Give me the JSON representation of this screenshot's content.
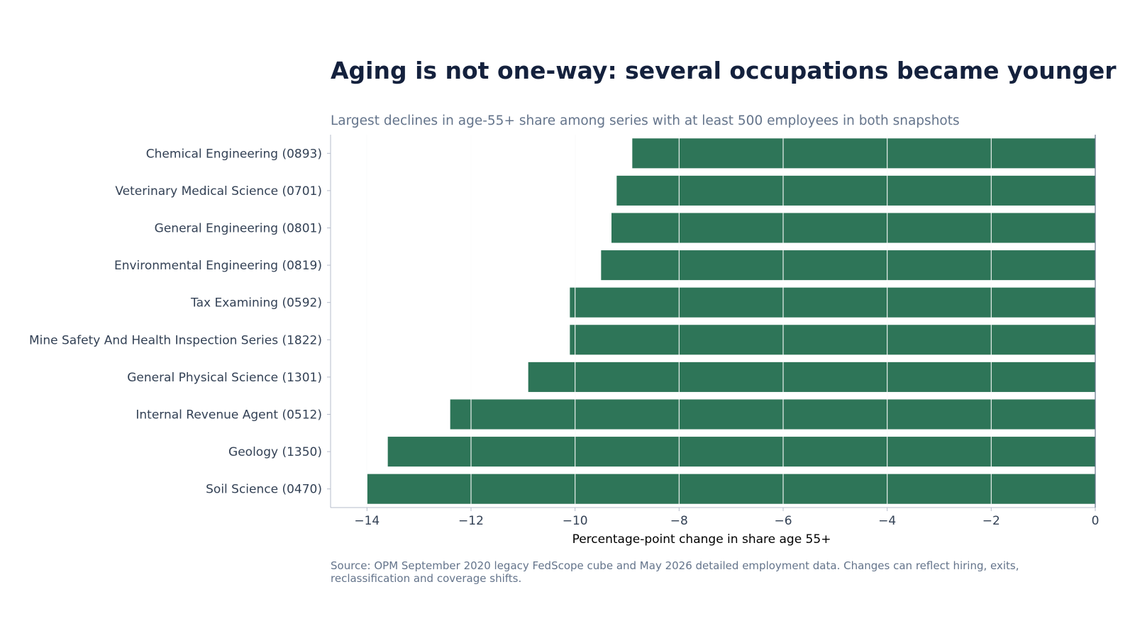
{
  "colors": {
    "bar": "#2e7558",
    "title": "#14213d",
    "muted": "#64748b",
    "grid": "#e5e7eb",
    "axis": "#b6bccb"
  },
  "chart_data": {
    "type": "bar",
    "orientation": "horizontal",
    "title": "Aging is not one-way: several occupations became younger",
    "subtitle": "Largest declines in age-55+ share among series with at least 500 employees in both snapshots",
    "xlabel": "Percentage-point change in share age 55+",
    "ylabel": "",
    "source": "Source: OPM September 2020 legacy FedScope cube and May 2026 detailed employment data. Changes can reflect hiring, exits, reclassification and coverage shifts.",
    "categories": [
      "Chemical Engineering (0893)",
      "Veterinary Medical Science (0701)",
      "General Engineering (0801)",
      "Environmental Engineering (0819)",
      "Tax Examining (0592)",
      "Mine Safety And Health Inspection Series (1822)",
      "General Physical Science (1301)",
      "Internal Revenue Agent (0512)",
      "Geology (1350)",
      "Soil Science (0470)"
    ],
    "values": [
      -8.9,
      -9.2,
      -9.3,
      -9.5,
      -10.1,
      -10.1,
      -10.9,
      -12.4,
      -13.6,
      -14.0
    ],
    "xlim": [
      -14.7,
      0
    ],
    "xticks": [
      -14,
      -12,
      -10,
      -8,
      -6,
      -4,
      -2,
      0
    ],
    "xtick_labels": [
      "−14",
      "−12",
      "−10",
      "−8",
      "−6",
      "−4",
      "−2",
      "0"
    ],
    "grid": true,
    "legend": "none"
  }
}
